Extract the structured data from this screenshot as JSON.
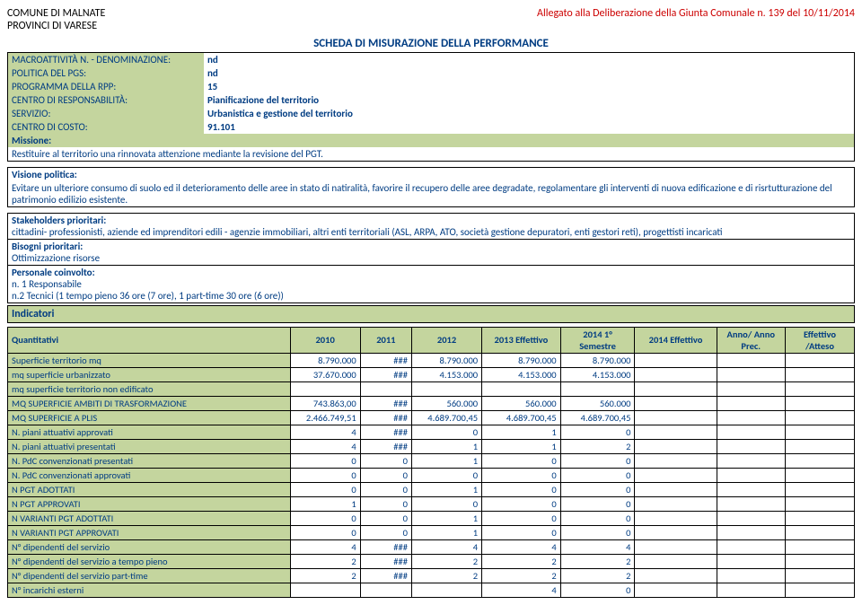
{
  "header": {
    "comune1": "COMUNE DI MALNATE",
    "comune2": "PROVINCI DI VARESE",
    "allegato": "Allegato alla Deliberazione della Giunta Comunale n. 139 del 10/11/2014",
    "scheda": "SCHEDA DI MISURAZIONE DELLA PERFORMANCE"
  },
  "meta": {
    "rows": [
      {
        "label": "MACROATTIVITÀ N. - DENOMINAZIONE:",
        "value": "nd"
      },
      {
        "label": "POLITICA DEL PGS:",
        "value": "nd"
      },
      {
        "label": "PROGRAMMA DELLA RPP:",
        "value": "15"
      },
      {
        "label": "CENTRO DI RESPONSABILITÀ:",
        "value": "Pianificazione del territorio"
      },
      {
        "label": "SERVIZIO:",
        "value": "Urbanistica e gestione del territorio"
      },
      {
        "label": "CENTRO DI COSTO:",
        "value": "91.101"
      }
    ],
    "missione_label": "Missione:",
    "missione_text": "Restituire al territorio una rinnovata attenzione mediante la revisione del PGT."
  },
  "blocks": {
    "visione_label": "Visione politica:",
    "visione_text": "Evitare un ulteriore consumo di suolo ed il deterioramento delle aree in stato di natiralità, favorire il recupero delle aree degradate, regolamentare gli interventi di nuova edificazione e di risrtutturazione del patrimonio edilizio esistente.",
    "stake_label": "Stakeholders prioritari:",
    "stake_text": "cittadini- professionisti, aziende ed imprenditori edili - agenzie immobiliari, altri enti territoriali (ASL, ARPA, ATO, società gestione depuratori, enti gestori reti), progettisti incaricati",
    "bisogni_label": "Bisogni prioritari:",
    "bisogni_text": "Ottimizzazione risorse",
    "personale_label": "Personale coinvolto:",
    "personale_text1": "n. 1 Responsabile",
    "personale_text2": "n.2 Tecnici (1 tempo pieno 36 ore (7 ore), 1 part-time 30 ore (6 ore))",
    "indicatori": "Indicatori"
  },
  "grid": {
    "headers": [
      "Quantitativi",
      "2010",
      "2011",
      "2012",
      "2013 Effettivo",
      "2014\n1° Semestre",
      "2014   Effettivo",
      "Anno/ Anno Prec.",
      "Effettivo /Atteso"
    ],
    "rows": [
      [
        "Superficie territorio mq",
        "8.790.000",
        "###",
        "8.790.000",
        "8.790.000",
        "8.790.000",
        "",
        "",
        ""
      ],
      [
        "mq superficie urbanizzato",
        "37.670.000",
        "###",
        "4.153.000",
        "4.153.000",
        "4.153.000",
        "",
        "",
        ""
      ],
      [
        "mq superficie territorio non edificato",
        "",
        "",
        "",
        "",
        "",
        "",
        "",
        ""
      ],
      [
        "MQ SUPERFICIE AMBITI DI TRASFORMAZIONE",
        "743.863,00",
        "###",
        "560.000",
        "560.000",
        "560.000",
        "",
        "",
        ""
      ],
      [
        "MQ SUPERFICIE  A PLIS",
        "2.466.749,51",
        "###",
        "4.689.700,45",
        "4.689.700,45",
        "4.689.700,45",
        "",
        "",
        ""
      ],
      [
        "N. piani attuativi approvati",
        "4",
        "###",
        "0",
        "1",
        "0",
        "",
        "",
        ""
      ],
      [
        "N. piani attuativi presentati",
        "4",
        "###",
        "1",
        "1",
        "2",
        "",
        "",
        ""
      ],
      [
        "N. PdC convenzionati presentati",
        "0",
        "0",
        "1",
        "0",
        "0",
        "",
        "",
        ""
      ],
      [
        "N. PdC convenzionati approvati",
        "0",
        "0",
        "0",
        "0",
        "0",
        "",
        "",
        ""
      ],
      [
        "N PGT ADOTTATI",
        "0",
        "0",
        "1",
        "0",
        "0",
        "",
        "",
        ""
      ],
      [
        "N PGT APPROVATI",
        "1",
        "0",
        "0",
        "0",
        "0",
        "",
        "",
        ""
      ],
      [
        "N VARIANTI PGT ADOTTATI",
        "0",
        "0",
        "1",
        "0",
        "0",
        "",
        "",
        ""
      ],
      [
        "N VARIANTI PGT APPROVATI",
        "0",
        "0",
        "1",
        "0",
        "0",
        "",
        "",
        ""
      ],
      [
        "N° dipendenti del servizio",
        "4",
        "###",
        "4",
        "4",
        "4",
        "",
        "",
        ""
      ],
      [
        "N° dipendenti del servizio a tempo pieno",
        "2",
        "###",
        "2",
        "2",
        "2",
        "",
        "",
        ""
      ],
      [
        "N° dipendenti del servizio part-time",
        "2",
        "###",
        "2",
        "2",
        "2",
        "",
        "",
        ""
      ],
      [
        "N° incarichi esterni",
        "",
        "",
        "",
        "4",
        "0",
        "",
        "",
        ""
      ]
    ],
    "col_widths": [
      "320px",
      "70px",
      "50px",
      "70px",
      "80px",
      "75px",
      "85px",
      "70px",
      "70px"
    ],
    "col_align": [
      "left",
      "right",
      "right",
      "right",
      "right",
      "right",
      "right",
      "right",
      "right"
    ]
  },
  "colors": {
    "green": "#c4d59e",
    "blue": "#003c82",
    "red": "#cc0000",
    "border": "#000000",
    "bg": "#ffffff"
  }
}
